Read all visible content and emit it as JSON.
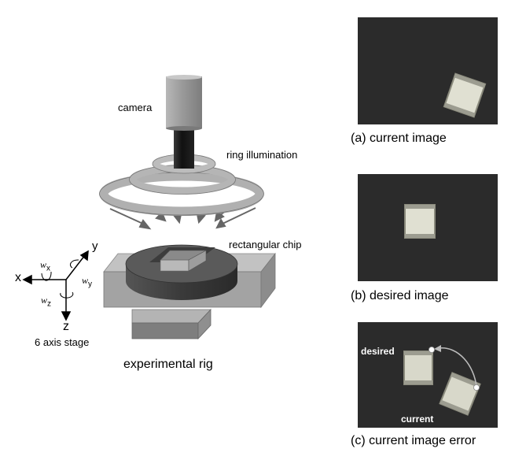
{
  "rig": {
    "camera_label": "camera",
    "ring_label": "ring illumination",
    "chip_label": "rectangular chip",
    "stage_label": "6 axis stage",
    "caption": "experimental rig",
    "axes": {
      "x": "x",
      "y": "y",
      "z": "z",
      "wx_base": "w",
      "wx_sub": "x",
      "wy_base": "w",
      "wy_sub": "y",
      "wz_base": "w",
      "wz_sub": "z"
    }
  },
  "panels": {
    "a_caption": "(a) current image",
    "b_caption": "(b) desired image",
    "c_caption": "(c) current image error",
    "c_desired_label": "desired",
    "c_current_label": "current"
  },
  "colors": {
    "photo_bg": "#2b2b2b",
    "chip_face": "#d2d2c2",
    "rig_gray": "#a8a8a8"
  }
}
